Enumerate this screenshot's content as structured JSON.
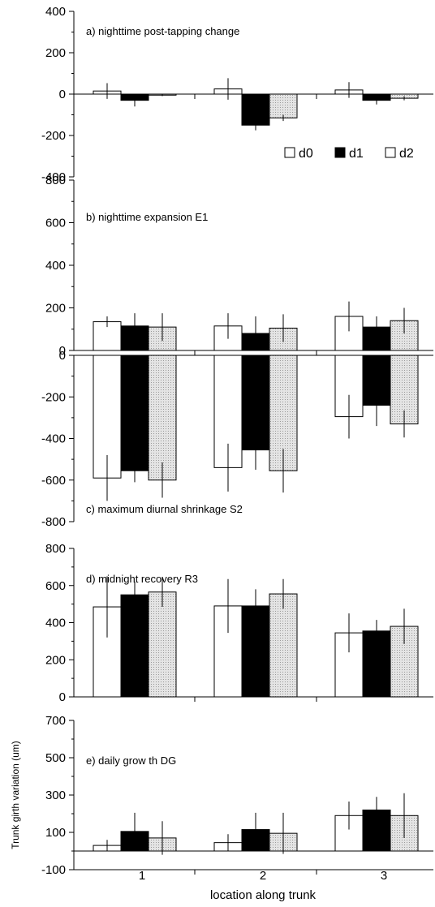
{
  "chart_data": [
    {
      "type": "bar",
      "title": "a) nighttime post-tapping change",
      "categories": [
        "1",
        "2",
        "3"
      ],
      "series": [
        {
          "name": "d0",
          "values": [
            15,
            25,
            20
          ],
          "errors": [
            38,
            52,
            38
          ]
        },
        {
          "name": "d1",
          "values": [
            -30,
            -150,
            -30
          ],
          "errors": [
            30,
            25,
            20
          ]
        },
        {
          "name": "d2",
          "values": [
            -5,
            -115,
            -20
          ],
          "errors": [
            5,
            15,
            10
          ]
        }
      ],
      "ylim": [
        -400,
        400
      ],
      "yticks": [
        -400,
        -200,
        0,
        200,
        400
      ],
      "legend": "bottom-right"
    },
    {
      "type": "bar",
      "title": "b) nighttime expansion E1",
      "categories": [
        "1",
        "2",
        "3"
      ],
      "series": [
        {
          "name": "d0",
          "values": [
            135,
            115,
            160
          ],
          "errors": [
            25,
            60,
            70
          ]
        },
        {
          "name": "d1",
          "values": [
            115,
            80,
            110
          ],
          "errors": [
            60,
            80,
            50
          ]
        },
        {
          "name": "d2",
          "values": [
            110,
            105,
            140
          ],
          "errors": [
            65,
            65,
            60
          ]
        }
      ],
      "ylim": [
        0,
        800
      ],
      "yticks": [
        0,
        200,
        400,
        600,
        800
      ]
    },
    {
      "type": "bar",
      "title": "c) maximum diurnal shrinkage S2",
      "categories": [
        "1",
        "2",
        "3"
      ],
      "series": [
        {
          "name": "d0",
          "values": [
            -590,
            -540,
            -295
          ],
          "errors": [
            110,
            115,
            105
          ]
        },
        {
          "name": "d1",
          "values": [
            -555,
            -455,
            -240
          ],
          "errors": [
            55,
            95,
            100
          ]
        },
        {
          "name": "d2",
          "values": [
            -600,
            -555,
            -330
          ],
          "errors": [
            85,
            105,
            65
          ]
        }
      ],
      "ylim": [
        -800,
        0
      ],
      "yticks": [
        -800,
        -600,
        -400,
        -200,
        0
      ]
    },
    {
      "type": "bar",
      "title": "d) midnight recovery R3",
      "categories": [
        "1",
        "2",
        "3"
      ],
      "series": [
        {
          "name": "d0",
          "values": [
            485,
            490,
            345
          ],
          "errors": [
            165,
            145,
            105
          ]
        },
        {
          "name": "d1",
          "values": [
            550,
            490,
            355
          ],
          "errors": [
            70,
            90,
            60
          ]
        },
        {
          "name": "d2",
          "values": [
            565,
            555,
            380
          ],
          "errors": [
            80,
            80,
            95
          ]
        }
      ],
      "ylim": [
        0,
        800
      ],
      "yticks": [
        0,
        200,
        400,
        600,
        800
      ]
    },
    {
      "type": "bar",
      "title": "e) daily grow th DG",
      "categories": [
        "1",
        "2",
        "3"
      ],
      "series": [
        {
          "name": "d0",
          "values": [
            30,
            45,
            190
          ],
          "errors": [
            30,
            45,
            75
          ]
        },
        {
          "name": "d1",
          "values": [
            105,
            115,
            220
          ],
          "errors": [
            100,
            90,
            70
          ]
        },
        {
          "name": "d2",
          "values": [
            70,
            95,
            190
          ],
          "errors": [
            90,
            110,
            120
          ]
        }
      ],
      "ylim": [
        -100,
        700
      ],
      "yticks": [
        -100,
        100,
        300,
        500,
        700
      ],
      "ylabel": "Trunk girth variation (um)",
      "xlabel": "location along trunk"
    }
  ]
}
